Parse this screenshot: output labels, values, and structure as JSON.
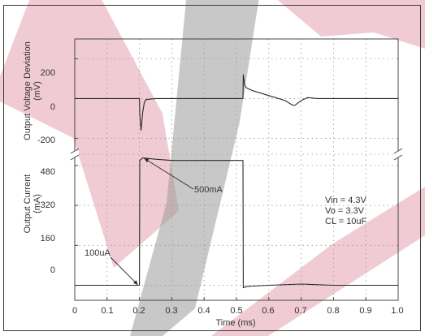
{
  "chart_data": {
    "type": "line",
    "xlabel": "Time (ms)",
    "x_ticks": [
      "0",
      "0.1",
      "0.2",
      "0.3",
      "0.4",
      "0.5",
      "0.6",
      "0.7",
      "0.8",
      "0.9",
      "1.0"
    ],
    "xlim": [
      0,
      1.0
    ],
    "grid": true,
    "panels": [
      {
        "ylabel_line1": "Output Voltage Deviation",
        "ylabel_line2": "(mV)",
        "y_ticks": [
          "200",
          "0",
          "-200"
        ],
        "ylim": [
          -280,
          300
        ],
        "series": [
          {
            "x": [
              0,
              0.05,
              0.1,
              0.15,
              0.2,
              0.201,
              0.205,
              0.21,
              0.215,
              0.22,
              0.25,
              0.3,
              0.35,
              0.4,
              0.45,
              0.5,
              0.52,
              0.521,
              0.525,
              0.53,
              0.55,
              0.58,
              0.6,
              0.62,
              0.65,
              0.67,
              0.68,
              0.7,
              0.72,
              0.75,
              0.8,
              0.85,
              0.9,
              0.95,
              1.0
            ],
            "y": [
              0,
              0,
              0,
              0,
              0,
              -80,
              -160,
              -70,
              -20,
              -5,
              0,
              0,
              0,
              0,
              0,
              0,
              0,
              120,
              70,
              55,
              40,
              25,
              15,
              5,
              -10,
              -30,
              -35,
              -10,
              5,
              0,
              0,
              0,
              0,
              0,
              0
            ]
          }
        ]
      },
      {
        "ylabel_line1": "Output Current",
        "ylabel_line2": "(mA)",
        "y_ticks": [
          "480",
          "320",
          "160",
          "0"
        ],
        "ylim": [
          -60,
          525
        ],
        "series": [
          {
            "x": [
              0,
              0.05,
              0.1,
              0.15,
              0.2,
              0.201,
              0.21,
              0.25,
              0.3,
              0.4,
              0.5,
              0.52,
              0.521,
              0.53,
              0.55,
              0.6,
              0.7,
              0.8,
              0.9,
              1.0
            ],
            "y": [
              0,
              0,
              0,
              0,
              0,
              500,
              510,
              505,
              500,
              500,
              500,
              500,
              -10,
              -5,
              -3,
              0,
              5,
              0,
              0,
              0
            ]
          }
        ]
      }
    ],
    "annotations": [
      {
        "text": "500mA"
      },
      {
        "text": "100uA"
      },
      {
        "text": "Vin = 4.3V"
      },
      {
        "text": "Vo = 3.3V"
      },
      {
        "text": "CL = 10uF"
      }
    ]
  }
}
